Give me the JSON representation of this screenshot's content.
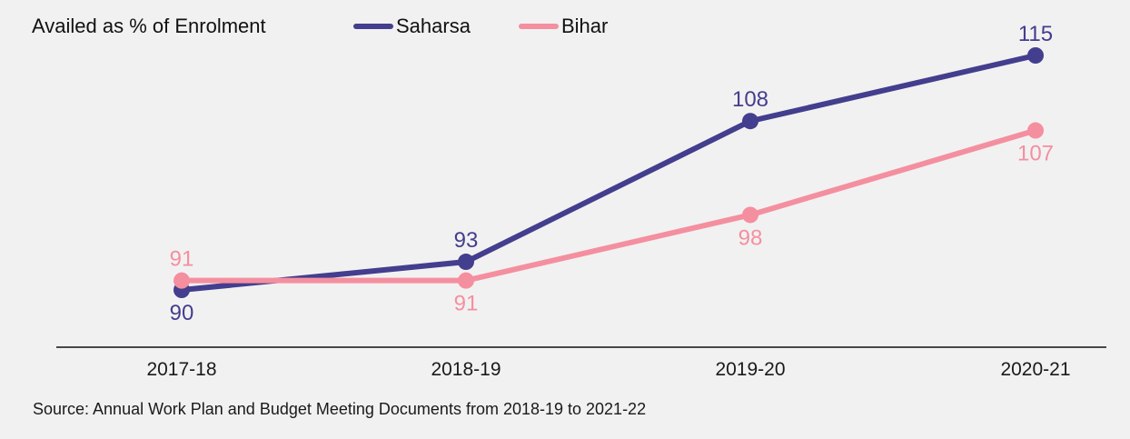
{
  "chart_data": {
    "type": "line",
    "title": "Availed as % of Enrolment",
    "categories": [
      "2017-18",
      "2018-19",
      "2019-20",
      "2020-21"
    ],
    "series": [
      {
        "name": "Saharsa",
        "values": [
          90,
          93,
          108,
          115
        ],
        "color": "#433e8e"
      },
      {
        "name": "Bihar",
        "values": [
          91,
          91,
          98,
          107
        ],
        "color": "#f48fa0"
      }
    ],
    "xlabel": "",
    "ylabel": "",
    "grid": false,
    "legend_position": "top",
    "source": "Source: Annual Work Plan and Budget Meeting Documents from 2018-19 to 2021-22"
  }
}
